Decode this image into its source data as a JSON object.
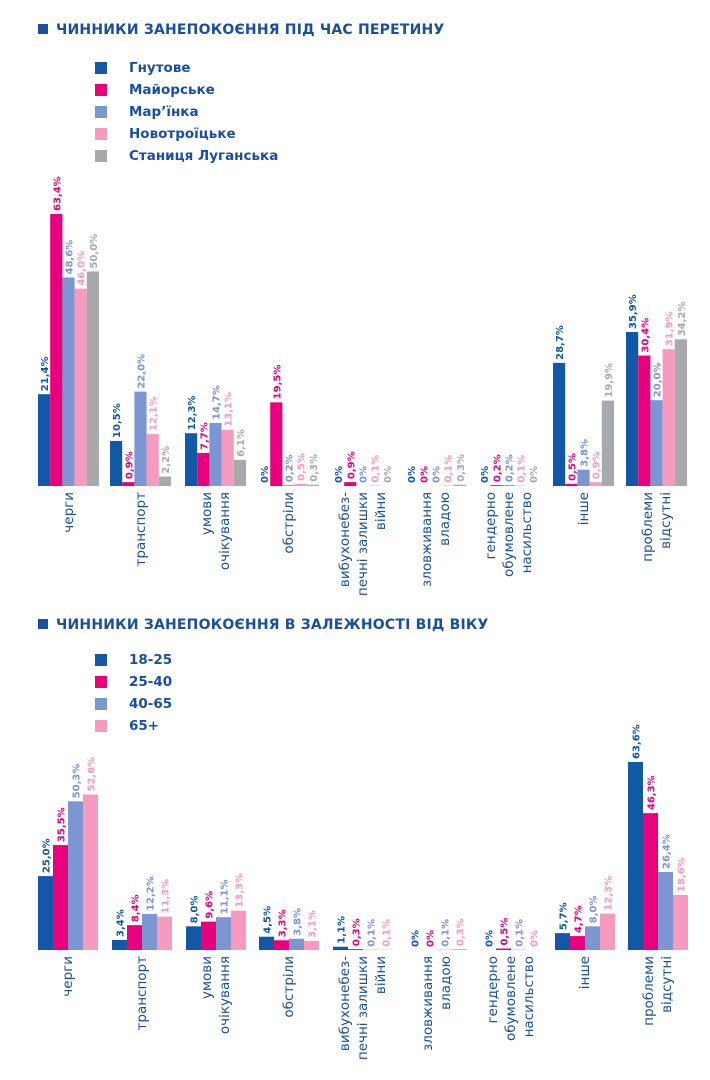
{
  "colors": {
    "title": "#1a4fa0",
    "dark_blue": "#1158a7",
    "magenta": "#e8007d",
    "periwinkle": "#7b96d0",
    "pink": "#f79ac0",
    "gray": "#a8a9ad"
  },
  "chart_data": [
    {
      "type": "bar",
      "title": "ЧИННИКИ ЗАНЕПОКОЄННЯ ПІД ЧАС ПЕРЕТИНУ",
      "xlabel": "",
      "ylabel": "",
      "ylim": [
        0,
        63.4
      ],
      "grid": false,
      "legend_position": "top-left",
      "categories": [
        [
          "черги"
        ],
        [
          "транспорт"
        ],
        [
          "умови",
          "очікування"
        ],
        [
          "обстріли"
        ],
        [
          "вибухонебез-",
          "печні залишки",
          "війни"
        ],
        [
          "зловживання",
          "владою"
        ],
        [
          "гендерно",
          "обумовлене",
          "насильство"
        ],
        [
          "інше"
        ],
        [
          "проблеми",
          "відсутні"
        ]
      ],
      "series": [
        {
          "name": "Гнутове",
          "color": "#1158a7",
          "values": [
            21.4,
            10.5,
            12.3,
            0,
            0,
            0,
            0,
            28.7,
            35.9
          ],
          "labels": [
            "21,4%",
            "10,5%",
            "12,3%",
            "0%",
            "0%",
            "0%",
            "0%",
            "28,7%",
            "35,9%"
          ]
        },
        {
          "name": "Майорське",
          "color": "#e8007d",
          "values": [
            63.4,
            0.9,
            7.7,
            19.5,
            0.9,
            0,
            0.2,
            0.5,
            30.4
          ],
          "labels": [
            "63,4%",
            "0,9%",
            "7,7%",
            "19,5%",
            "0,9%",
            "0%",
            "0,2%",
            "0,5%",
            "30,4%"
          ]
        },
        {
          "name": "Мар’їнка",
          "color": "#7b96d0",
          "values": [
            48.6,
            22.0,
            14.7,
            0.2,
            0,
            0,
            0.2,
            3.8,
            20.0
          ],
          "labels": [
            "48,6%",
            "22,0%",
            "14,7%",
            "0,2%",
            "0%",
            "0%",
            "0,2%",
            "3,8%",
            "20,0%"
          ]
        },
        {
          "name": "Новотроїцьке",
          "color": "#f79ac0",
          "values": [
            46.0,
            12.1,
            13.1,
            0.5,
            0.1,
            0.1,
            0.1,
            0.9,
            31.9
          ],
          "labels": [
            "46,0%",
            "12,1%",
            "13,1%",
            "0,5%",
            "0,1%",
            "0,1%",
            "0,1%",
            "0,9%",
            "31,9%"
          ]
        },
        {
          "name": "Станиця Луганська",
          "color": "#a8a9ad",
          "values": [
            50.0,
            2.2,
            6.1,
            0.3,
            0,
            0.3,
            0,
            19.9,
            34.2
          ],
          "labels": [
            "50,0%",
            "2,2%",
            "6,1%",
            "0,3%",
            "0%",
            "0,3%",
            "0%",
            "19,9%",
            "34,2%"
          ]
        }
      ]
    },
    {
      "type": "bar",
      "title": "ЧИННИКИ ЗАНЕПОКОЄННЯ В ЗАЛЕЖНОСТІ ВІД ВІКУ",
      "xlabel": "",
      "ylabel": "",
      "ylim": [
        0,
        63.6
      ],
      "grid": false,
      "legend_position": "top-left",
      "categories": [
        [
          "черги"
        ],
        [
          "транспорт"
        ],
        [
          "умови",
          "очікування"
        ],
        [
          "обстріли"
        ],
        [
          "вибухонебез-",
          "печні залишки",
          "війни"
        ],
        [
          "зловживання",
          "владою"
        ],
        [
          "гендерно",
          "обумовлене",
          "насильство"
        ],
        [
          "інше"
        ],
        [
          "проблеми",
          "відсутні"
        ]
      ],
      "series": [
        {
          "name": "18-25",
          "color": "#1158a7",
          "values": [
            25.0,
            3.4,
            8.0,
            4.5,
            1.1,
            0,
            0,
            5.7,
            63.6
          ],
          "labels": [
            "25,0%",
            "3,4%",
            "8,0%",
            "4,5%",
            "1,1%",
            "0%",
            "0%",
            "5,7%",
            "63,6%"
          ]
        },
        {
          "name": "25-40",
          "color": "#e8007d",
          "values": [
            35.5,
            8.4,
            9.6,
            3.3,
            0.3,
            0,
            0.5,
            4.7,
            46.3
          ],
          "labels": [
            "35,5%",
            "8,4%",
            "9,6%",
            "3,3%",
            "0,3%",
            "0%",
            "0,5%",
            "4,7%",
            "46,3%"
          ]
        },
        {
          "name": "40-65",
          "color": "#7b96d0",
          "values": [
            50.3,
            12.2,
            11.1,
            3.8,
            0.1,
            0.1,
            0.1,
            8.0,
            26.4
          ],
          "labels": [
            "50,3%",
            "12,2%",
            "11,1%",
            "3,8%",
            "0,1%",
            "0,1%",
            "0,1%",
            "8,0%",
            "26,4%"
          ]
        },
        {
          "name": "65+",
          "color": "#f79ac0",
          "values": [
            52.6,
            11.3,
            13.3,
            3.1,
            0.1,
            0.3,
            0,
            12.3,
            18.6
          ],
          "labels": [
            "52,6%",
            "11,3%",
            "13,3%",
            "3,1%",
            "0,1%",
            "0,3%",
            "0%",
            "12,3%",
            "18,6%"
          ]
        }
      ]
    }
  ]
}
